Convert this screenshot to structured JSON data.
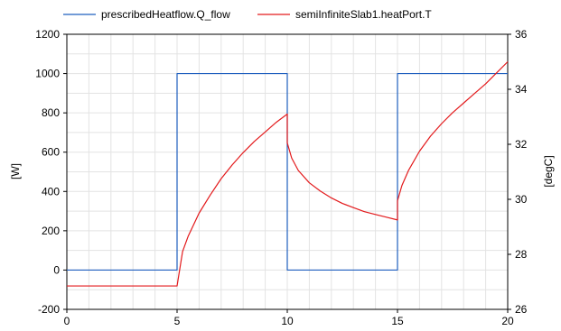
{
  "chart_data": {
    "type": "line",
    "x": [
      0,
      5,
      10,
      15,
      20
    ],
    "xlim": [
      0,
      20
    ],
    "xticks": [
      "0",
      "5",
      "10",
      "15",
      "20"
    ],
    "left_axis": {
      "label": "[W]",
      "ylim": [
        -200,
        1200
      ],
      "ticks": [
        "-200",
        "0",
        "200",
        "400",
        "600",
        "800",
        "1000",
        "1200"
      ]
    },
    "right_axis": {
      "label": "[degC]",
      "ylim": [
        26,
        36
      ],
      "ticks": [
        "26",
        "28",
        "30",
        "32",
        "34",
        "36"
      ]
    },
    "grid": true,
    "legend_position": "top",
    "series": [
      {
        "name": "prescribedHeatflow.Q_flow",
        "axis": "left",
        "color": "#1f5fbf",
        "points": [
          [
            0,
            0
          ],
          [
            5,
            0
          ],
          [
            5,
            1000
          ],
          [
            10,
            1000
          ],
          [
            10,
            0
          ],
          [
            15,
            0
          ],
          [
            15,
            1000
          ],
          [
            20,
            1000
          ]
        ]
      },
      {
        "name": "semiInfiniteSlab1.heatPort.T",
        "axis": "right",
        "color": "#e31a1c",
        "points": [
          [
            0,
            26.85
          ],
          [
            5,
            26.85
          ],
          [
            5.25,
            28.1
          ],
          [
            5.5,
            28.65
          ],
          [
            6,
            29.5
          ],
          [
            6.5,
            30.15
          ],
          [
            7,
            30.75
          ],
          [
            7.5,
            31.25
          ],
          [
            8,
            31.7
          ],
          [
            8.5,
            32.1
          ],
          [
            9,
            32.45
          ],
          [
            9.5,
            32.8
          ],
          [
            10,
            33.1
          ],
          [
            10,
            32.05
          ],
          [
            10.2,
            31.5
          ],
          [
            10.5,
            31.05
          ],
          [
            11,
            30.6
          ],
          [
            11.5,
            30.3
          ],
          [
            12,
            30.05
          ],
          [
            12.5,
            29.85
          ],
          [
            13,
            29.7
          ],
          [
            13.5,
            29.55
          ],
          [
            14,
            29.45
          ],
          [
            14.5,
            29.35
          ],
          [
            15,
            29.25
          ],
          [
            15,
            29.95
          ],
          [
            15.2,
            30.5
          ],
          [
            15.5,
            31.05
          ],
          [
            16,
            31.75
          ],
          [
            16.5,
            32.3
          ],
          [
            17,
            32.75
          ],
          [
            17.5,
            33.15
          ],
          [
            18,
            33.5
          ],
          [
            18.5,
            33.85
          ],
          [
            19,
            34.2
          ],
          [
            19.5,
            34.6
          ],
          [
            20,
            35.0
          ]
        ]
      }
    ]
  }
}
